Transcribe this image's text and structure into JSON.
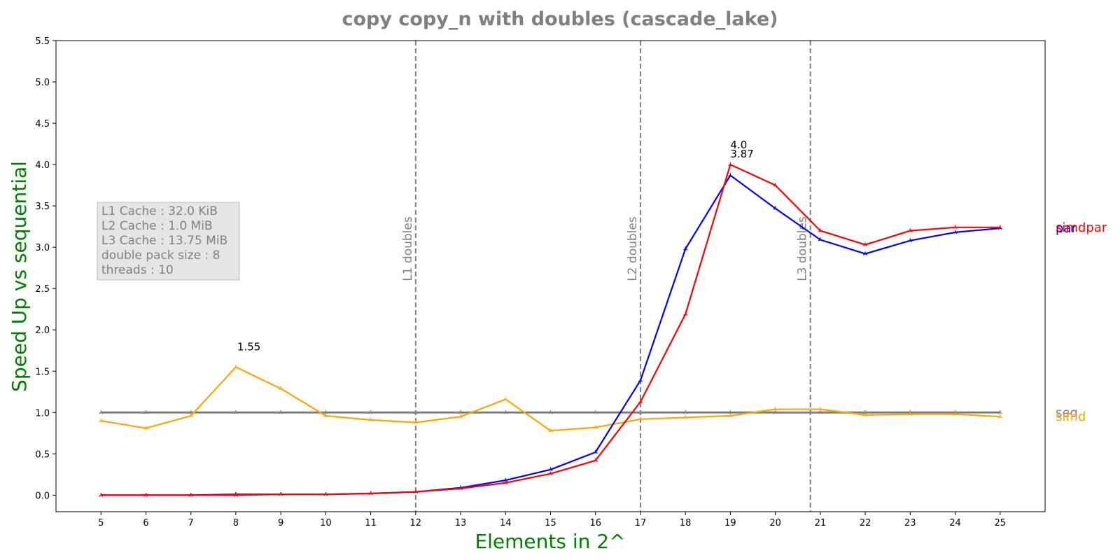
{
  "chart_data": {
    "type": "line",
    "title": "copy copy_n with doubles  (cascade_lake)",
    "xlabel": "Elements in 2^",
    "ylabel": "Speed Up vs sequential",
    "x": [
      5,
      6,
      7,
      8,
      9,
      10,
      11,
      12,
      13,
      14,
      15,
      16,
      17,
      18,
      19,
      20,
      21,
      22,
      23,
      24,
      25
    ],
    "xlim": [
      4,
      26
    ],
    "ylim": [
      -0.2,
      5.5
    ],
    "yticks": [
      0.0,
      0.5,
      1.0,
      1.5,
      2.0,
      2.5,
      3.0,
      3.5,
      4.0,
      4.5,
      5.0,
      5.5
    ],
    "grid": false,
    "series": [
      {
        "name": "seq",
        "color": "#808080",
        "values": [
          1.0,
          1.0,
          1.0,
          1.0,
          1.0,
          1.0,
          1.0,
          1.0,
          1.0,
          1.0,
          1.0,
          1.0,
          1.0,
          1.0,
          1.0,
          1.0,
          1.0,
          1.0,
          1.0,
          1.0,
          1.0
        ]
      },
      {
        "name": "simd",
        "color": "#ffa500",
        "values": [
          0.9,
          0.81,
          0.96,
          1.55,
          1.29,
          0.96,
          0.91,
          0.88,
          0.95,
          1.16,
          0.78,
          0.82,
          0.92,
          0.94,
          0.96,
          1.04,
          1.04,
          0.97,
          0.98,
          0.98,
          0.95
        ]
      },
      {
        "name": "par",
        "color": "#0000ff",
        "values": [
          0.0,
          0.0,
          0.0,
          0.01,
          0.01,
          0.01,
          0.02,
          0.04,
          0.09,
          0.18,
          0.31,
          0.52,
          1.39,
          2.98,
          3.87,
          3.47,
          3.09,
          2.92,
          3.08,
          3.18,
          3.23
        ]
      },
      {
        "name": "simdpar",
        "color": "#ff0000",
        "values": [
          0.0,
          0.0,
          0.0,
          0.0,
          0.01,
          0.01,
          0.02,
          0.04,
          0.08,
          0.15,
          0.26,
          0.42,
          1.13,
          2.19,
          4.0,
          3.75,
          3.2,
          3.03,
          3.2,
          3.24,
          3.24
        ]
      }
    ],
    "end_labels": [
      {
        "text": "par",
        "color": "#0000ff",
        "y": 3.23
      },
      {
        "text": "simdpar",
        "color": "#ff0000",
        "y": 3.24
      },
      {
        "text": "seq",
        "color": "#808080",
        "y": 1.0
      },
      {
        "text": "simd",
        "color": "#ffa500",
        "y": 0.95
      }
    ],
    "cache_lines": [
      {
        "label": "L1 doubles",
        "x": 12.0
      },
      {
        "label": "L2 doubles",
        "x": 17.0
      },
      {
        "label": "L3 doubles",
        "x": 20.78
      }
    ],
    "annotations": [
      {
        "text": "1.55",
        "x": 8,
        "y": 1.55
      },
      {
        "text": "4.0",
        "x": 19,
        "y": 4.0
      },
      {
        "text": "3.87",
        "x": 19,
        "y": 3.87
      }
    ],
    "info_box": [
      "L1 Cache : 32.0 KiB",
      "L2 Cache : 1.0 MiB",
      "L3 Cache : 13.75 MiB",
      "double pack size : 8",
      "threads : 10"
    ]
  }
}
